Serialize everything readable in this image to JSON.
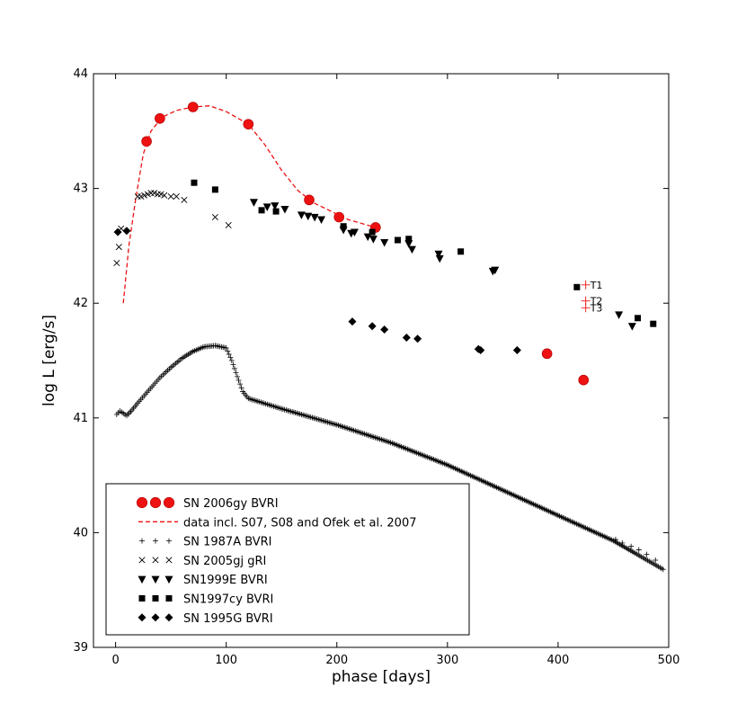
{
  "chart_data": {
    "type": "scatter",
    "xlabel": "phase [days]",
    "ylabel": "log L [erg/s]",
    "xlim": [
      -20,
      500
    ],
    "ylim": [
      39,
      44
    ],
    "x_ticks": [
      0,
      100,
      200,
      300,
      400,
      500
    ],
    "y_ticks": [
      39,
      40,
      41,
      42,
      43,
      44
    ],
    "grid": false,
    "legend_position": "bottom-left",
    "series": [
      {
        "name": "SN 2006gy BVRI",
        "marker": "circle",
        "color": "#ee1111",
        "points": [
          [
            28,
            43.41
          ],
          [
            40,
            43.61
          ],
          [
            70,
            43.71
          ],
          [
            120,
            43.56
          ],
          [
            175,
            42.9
          ],
          [
            202,
            42.75
          ],
          [
            235,
            42.66
          ],
          [
            390,
            41.56
          ],
          [
            423,
            41.33
          ]
        ]
      },
      {
        "name": "data incl. S07, S08 and Ofek et al. 2007",
        "marker": "dashed-line",
        "color": "#ee1111",
        "points": [
          [
            7,
            42.0
          ],
          [
            12,
            42.5
          ],
          [
            18,
            42.9
          ],
          [
            25,
            43.3
          ],
          [
            32,
            43.5
          ],
          [
            42,
            43.62
          ],
          [
            55,
            43.68
          ],
          [
            70,
            43.71
          ],
          [
            85,
            43.72
          ],
          [
            100,
            43.67
          ],
          [
            120,
            43.56
          ],
          [
            135,
            43.38
          ],
          [
            150,
            43.16
          ],
          [
            165,
            42.98
          ],
          [
            180,
            42.87
          ],
          [
            195,
            42.8
          ],
          [
            210,
            42.73
          ],
          [
            235,
            42.66
          ]
        ]
      },
      {
        "name": "SN 1987A  BVRI",
        "marker": "plus",
        "color": "#000000",
        "curve": [
          [
            1,
            41.03
          ],
          [
            4,
            41.06
          ],
          [
            7,
            41.04
          ],
          [
            10,
            41.02
          ],
          [
            15,
            41.07
          ],
          [
            20,
            41.13
          ],
          [
            30,
            41.24
          ],
          [
            40,
            41.35
          ],
          [
            50,
            41.44
          ],
          [
            60,
            41.52
          ],
          [
            70,
            41.58
          ],
          [
            80,
            41.62
          ],
          [
            90,
            41.63
          ],
          [
            100,
            41.61
          ],
          [
            105,
            41.5
          ],
          [
            110,
            41.36
          ],
          [
            115,
            41.23
          ],
          [
            120,
            41.17
          ],
          [
            130,
            41.14
          ],
          [
            150,
            41.08
          ],
          [
            200,
            40.94
          ],
          [
            250,
            40.78
          ],
          [
            300,
            40.59
          ],
          [
            350,
            40.37
          ],
          [
            400,
            40.15
          ],
          [
            450,
            39.93
          ],
          [
            495,
            39.68
          ]
        ],
        "points": [
          [
            452,
            39.94
          ],
          [
            458,
            39.91
          ],
          [
            466,
            39.88
          ],
          [
            473,
            39.85
          ],
          [
            480,
            39.81
          ],
          [
            488,
            39.76
          ],
          [
            495,
            39.68
          ]
        ]
      },
      {
        "name": "SN 2005gj gRI",
        "marker": "x",
        "color": "#000000",
        "points": [
          [
            1,
            42.35
          ],
          [
            3,
            42.49
          ],
          [
            5,
            42.65
          ],
          [
            20,
            42.93
          ],
          [
            23,
            42.93
          ],
          [
            26,
            42.94
          ],
          [
            29,
            42.95
          ],
          [
            32,
            42.96
          ],
          [
            35,
            42.96
          ],
          [
            38,
            42.95
          ],
          [
            41,
            42.95
          ],
          [
            44,
            42.94
          ],
          [
            50,
            42.93
          ],
          [
            55,
            42.93
          ],
          [
            62,
            42.9
          ],
          [
            90,
            42.75
          ],
          [
            102,
            42.68
          ]
        ]
      },
      {
        "name": "SN1999E   BVRI",
        "marker": "triangle-down",
        "color": "#000000",
        "points": [
          [
            125,
            42.88
          ],
          [
            137,
            42.84
          ],
          [
            144,
            42.85
          ],
          [
            153,
            42.82
          ],
          [
            168,
            42.77
          ],
          [
            174,
            42.76
          ],
          [
            180,
            42.75
          ],
          [
            186,
            42.73
          ],
          [
            206,
            42.64
          ],
          [
            213,
            42.61
          ],
          [
            216,
            42.62
          ],
          [
            228,
            42.58
          ],
          [
            233,
            42.56
          ],
          [
            243,
            42.53
          ],
          [
            265,
            42.52
          ],
          [
            268,
            42.47
          ],
          [
            292,
            42.43
          ],
          [
            293,
            42.39
          ],
          [
            341,
            42.28
          ],
          [
            343,
            42.29
          ],
          [
            455,
            41.9
          ],
          [
            467,
            41.8
          ]
        ]
      },
      {
        "name": "SN1997cy BVRI",
        "marker": "square",
        "color": "#000000",
        "points": [
          [
            71,
            43.05
          ],
          [
            90,
            42.99
          ],
          [
            132,
            42.81
          ],
          [
            145,
            42.8
          ],
          [
            206,
            42.67
          ],
          [
            232,
            42.62
          ],
          [
            255,
            42.55
          ],
          [
            265,
            42.56
          ],
          [
            312,
            42.45
          ],
          [
            417,
            42.14
          ],
          [
            472,
            41.87
          ],
          [
            486,
            41.82
          ]
        ]
      },
      {
        "name": "SN 1995G BVRI",
        "marker": "diamond",
        "color": "#000000",
        "points": [
          [
            2,
            42.62
          ],
          [
            10,
            42.63
          ],
          [
            214,
            41.84
          ],
          [
            232,
            41.8
          ],
          [
            243,
            41.77
          ],
          [
            263,
            41.7
          ],
          [
            273,
            41.69
          ],
          [
            328,
            41.6
          ],
          [
            330,
            41.59
          ],
          [
            363,
            41.59
          ]
        ]
      }
    ],
    "annotations": [
      {
        "text": "T1",
        "x": 425,
        "y": 42.16
      },
      {
        "text": "T2",
        "x": 425,
        "y": 42.02
      },
      {
        "text": "T3",
        "x": 425,
        "y": 41.96
      }
    ]
  }
}
